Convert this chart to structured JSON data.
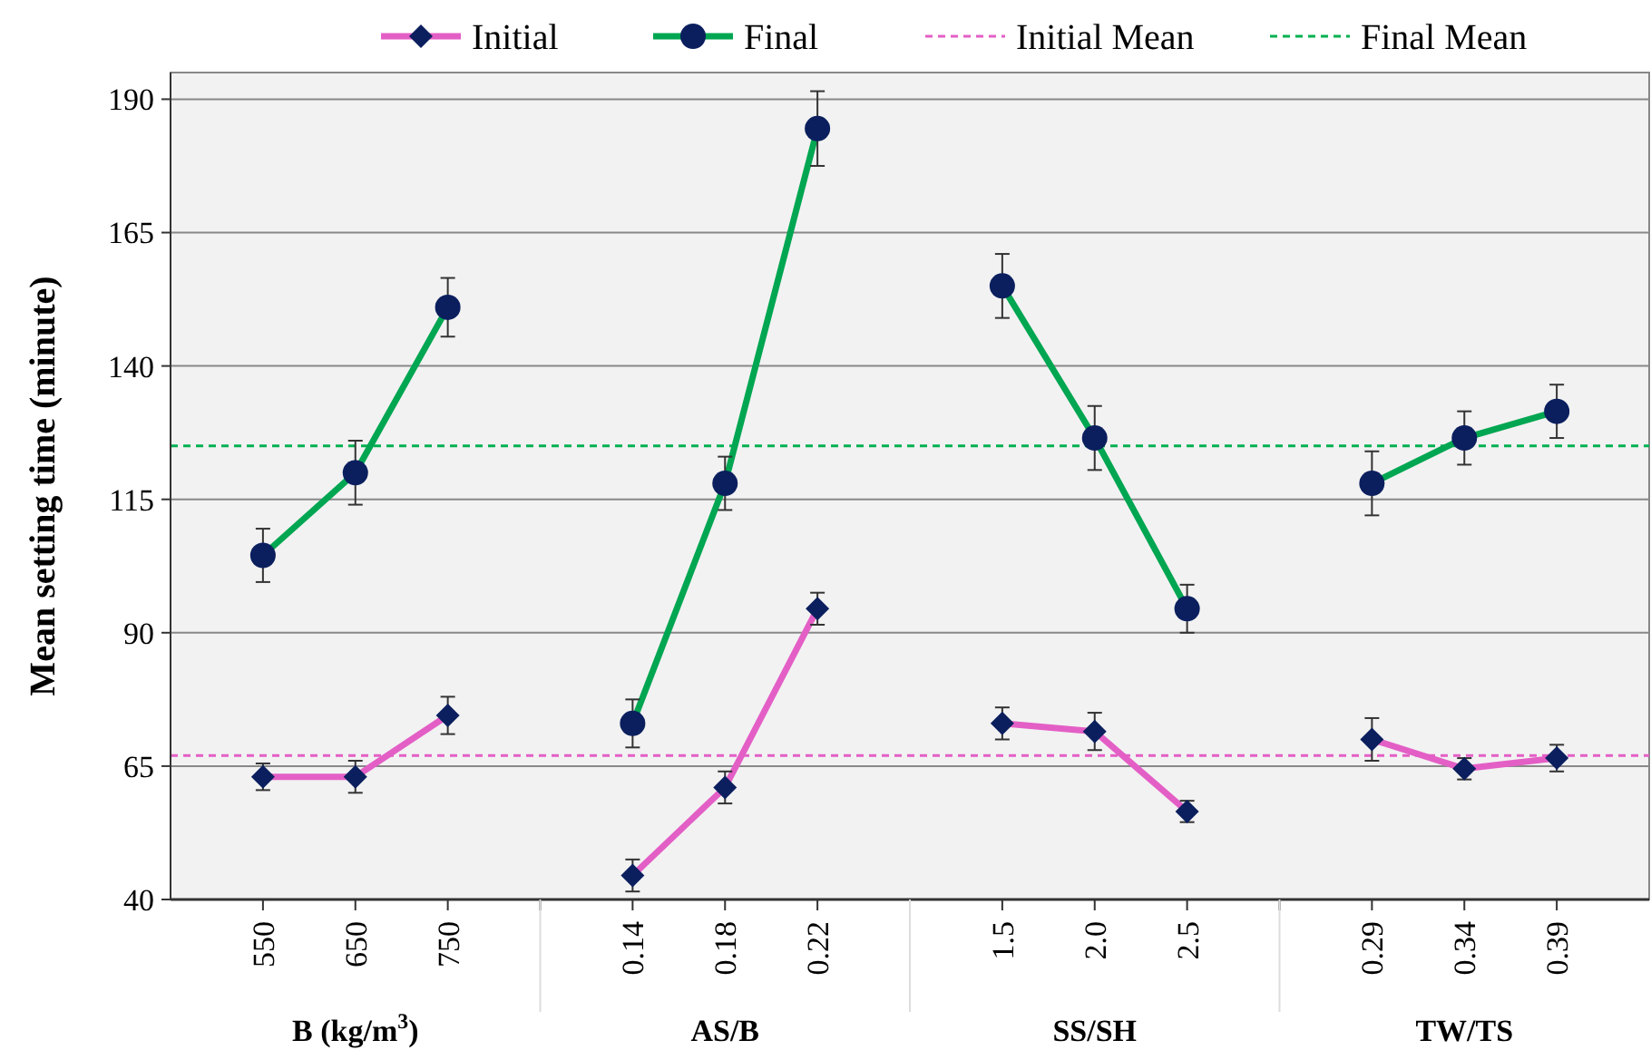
{
  "chart_data": {
    "type": "line",
    "ylabel": "Mean setting time (minute)",
    "categories": [
      "550",
      "650",
      "750",
      null,
      "0.14",
      "0.18",
      "0.22",
      null,
      "1.5",
      "2.0",
      "2.5",
      null,
      "0.29",
      "0.34",
      "0.39"
    ],
    "annotations": [
      "B (kg/m$^{3}$)",
      "AS/B",
      "SS/SH",
      "TW/TS"
    ],
    "series": [
      {
        "name": "Initial",
        "color": "#e35fc6",
        "marker": "diamond",
        "values": [
          63,
          63,
          74.5,
          null,
          44.5,
          61,
          94.5,
          null,
          73,
          71.5,
          56.5,
          null,
          70,
          64.5,
          66.5
        ],
        "errors": [
          2.5,
          3,
          3.5,
          null,
          3,
          3,
          3,
          null,
          3,
          3.5,
          2,
          null,
          4,
          2,
          2.5
        ]
      },
      {
        "name": "Final",
        "color": "#00a651",
        "marker": "circle",
        "values": [
          104.5,
          120,
          151,
          null,
          73,
          118,
          184.5,
          null,
          155,
          126.5,
          94.5,
          null,
          118,
          126.5,
          131.5
        ],
        "errors": [
          5,
          6,
          5.5,
          null,
          4.5,
          5,
          7,
          null,
          6,
          6,
          4.5,
          null,
          6,
          5,
          5
        ]
      }
    ],
    "ref_lines": [
      {
        "axis": "y",
        "value": 67,
        "label": "Initial Mean",
        "color": "#e35fc6",
        "line_style": "dashed"
      },
      {
        "axis": "y",
        "value": 125,
        "label": "Final Mean",
        "color": "#00b050",
        "line_style": "dashed"
      }
    ],
    "ylim": [
      40,
      195
    ],
    "yticks": [
      40,
      65,
      90,
      115,
      140,
      165,
      190
    ],
    "grid": "y",
    "legend": "top"
  }
}
